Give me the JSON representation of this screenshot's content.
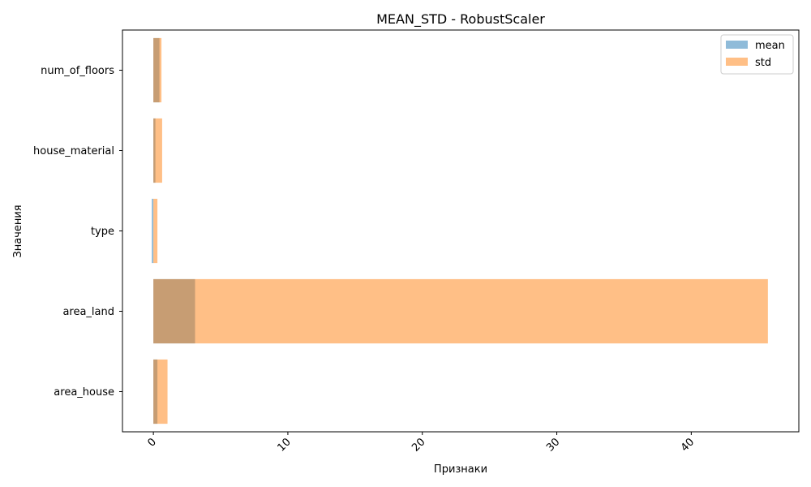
{
  "chart_data": {
    "type": "bar",
    "orientation": "horizontal",
    "title": "MEAN_STD - RobustScaler",
    "xlabel": "Признаки",
    "ylabel": "Значения",
    "categories": [
      "area_house",
      "area_land",
      "type",
      "house_material",
      "num_of_floors"
    ],
    "series": [
      {
        "name": "mean",
        "values": [
          0.3,
          3.1,
          -0.12,
          0.15,
          0.45
        ],
        "color": "#1f77b4",
        "opacity": 0.5
      },
      {
        "name": "std",
        "values": [
          1.05,
          45.7,
          0.3,
          0.65,
          0.6
        ],
        "color": "#ff7f0e",
        "opacity": 0.5
      }
    ],
    "xlim": [
      -2.3,
      48.0
    ],
    "xticks": [
      0,
      10,
      20,
      30,
      40
    ],
    "xtick_rotation": 45,
    "grid": false,
    "legend": "top-right"
  }
}
